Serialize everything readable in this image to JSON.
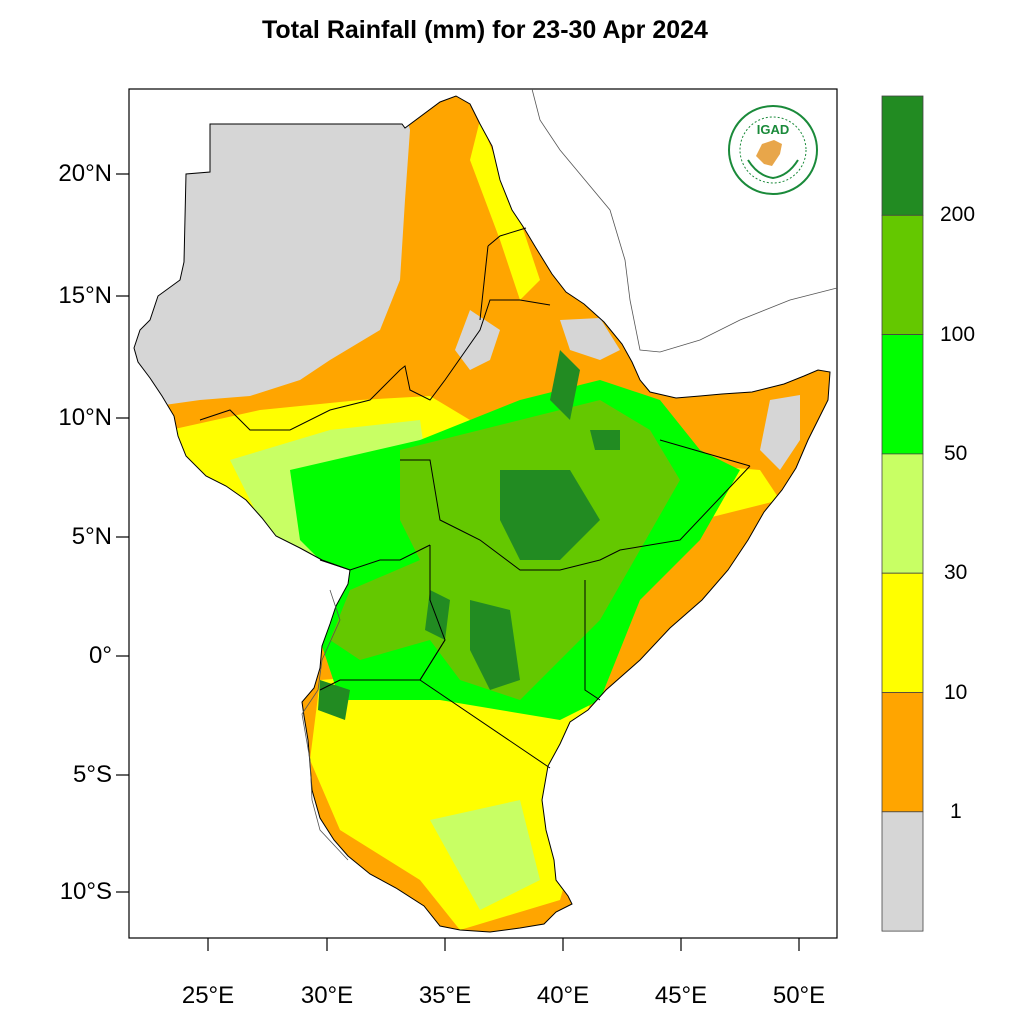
{
  "title": "Total Rainfall (mm) for 23-30 Apr 2024",
  "map": {
    "region": "Greater Horn of Africa",
    "y_axis_labels": [
      "20°N",
      "15°N",
      "10°N",
      "5°N",
      "0°",
      "5°S",
      "10°S"
    ],
    "x_axis_labels": [
      "25°E",
      "30°E",
      "35°E",
      "40°E",
      "45°E",
      "50°E"
    ],
    "lon_range": [
      21.7,
      51.6
    ],
    "lat_range": [
      -11.8,
      23.8
    ]
  },
  "legend": {
    "levels": [
      "1",
      "10",
      "30",
      "50",
      "100",
      "200"
    ],
    "colors": [
      "#d6d6d6",
      "#ffa500",
      "#ffff00",
      "#c8ff64",
      "#00ff00",
      "#64c800",
      "#228b22"
    ]
  },
  "logo": {
    "text": "IGAD",
    "colors": {
      "ring": "#1a8a3a",
      "text": "#1a8a3a",
      "map": "#e8a64a"
    }
  }
}
